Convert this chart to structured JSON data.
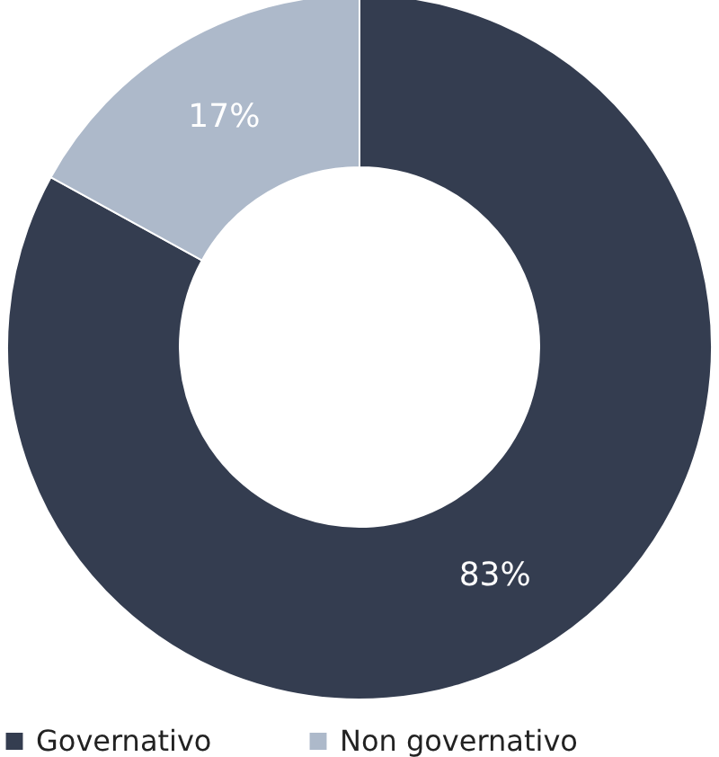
{
  "chart_data": {
    "type": "donut",
    "categories": [
      "Governativo",
      "Non governativo"
    ],
    "values": [
      83,
      17
    ],
    "colors": [
      "#343d50",
      "#adb9ca"
    ],
    "value_labels": [
      "83%",
      "17%"
    ],
    "legend": "bottom"
  }
}
